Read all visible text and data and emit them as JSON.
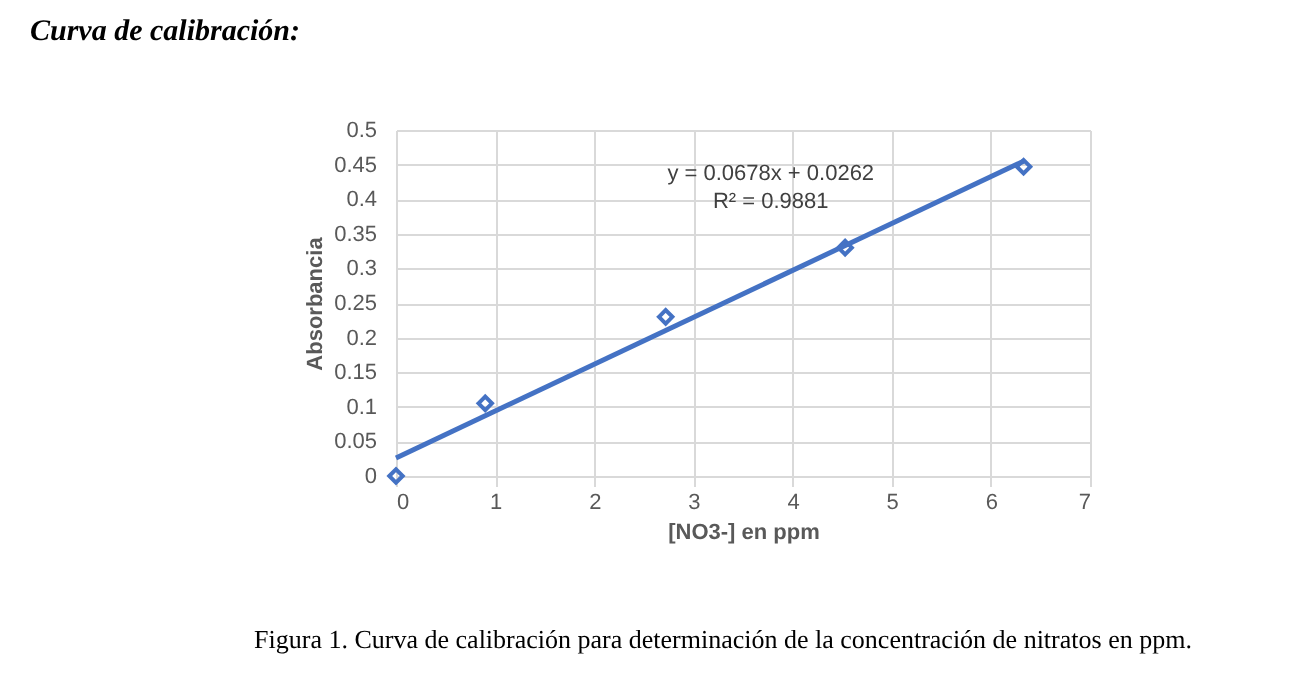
{
  "chart_data": {
    "type": "scatter",
    "title": "Curva de calibración:",
    "xlabel": "[NO3-] en ppm",
    "ylabel": "Absorbancia",
    "xlim": [
      0,
      7
    ],
    "xticks": [
      0,
      1,
      2,
      3,
      4,
      5,
      6,
      7
    ],
    "ylim": [
      0,
      0.5
    ],
    "yticks": [
      0,
      0.05,
      0.1,
      0.15,
      0.2,
      0.25,
      0.3,
      0.35,
      0.4,
      0.45,
      0.5
    ],
    "grid": true,
    "series": [
      {
        "type": "scatter",
        "marker": "diamond",
        "color": "#4472c4",
        "x": [
          0,
          0.9,
          2.72,
          4.53,
          6.33
        ],
        "values": [
          0,
          0.105,
          0.23,
          0.33,
          0.447
        ]
      },
      {
        "type": "line",
        "marker": "none",
        "line_style": "solid",
        "color": "#4472c4",
        "x": [
          0,
          6.33
        ],
        "values": [
          0.026,
          0.455
        ]
      }
    ],
    "annotations": [
      "y = 0.0678x + 0.0262",
      "R² = 0.9881",
      "Figura 1. Curva de calibración para determinación de la concentración de nitratos en ppm."
    ]
  }
}
